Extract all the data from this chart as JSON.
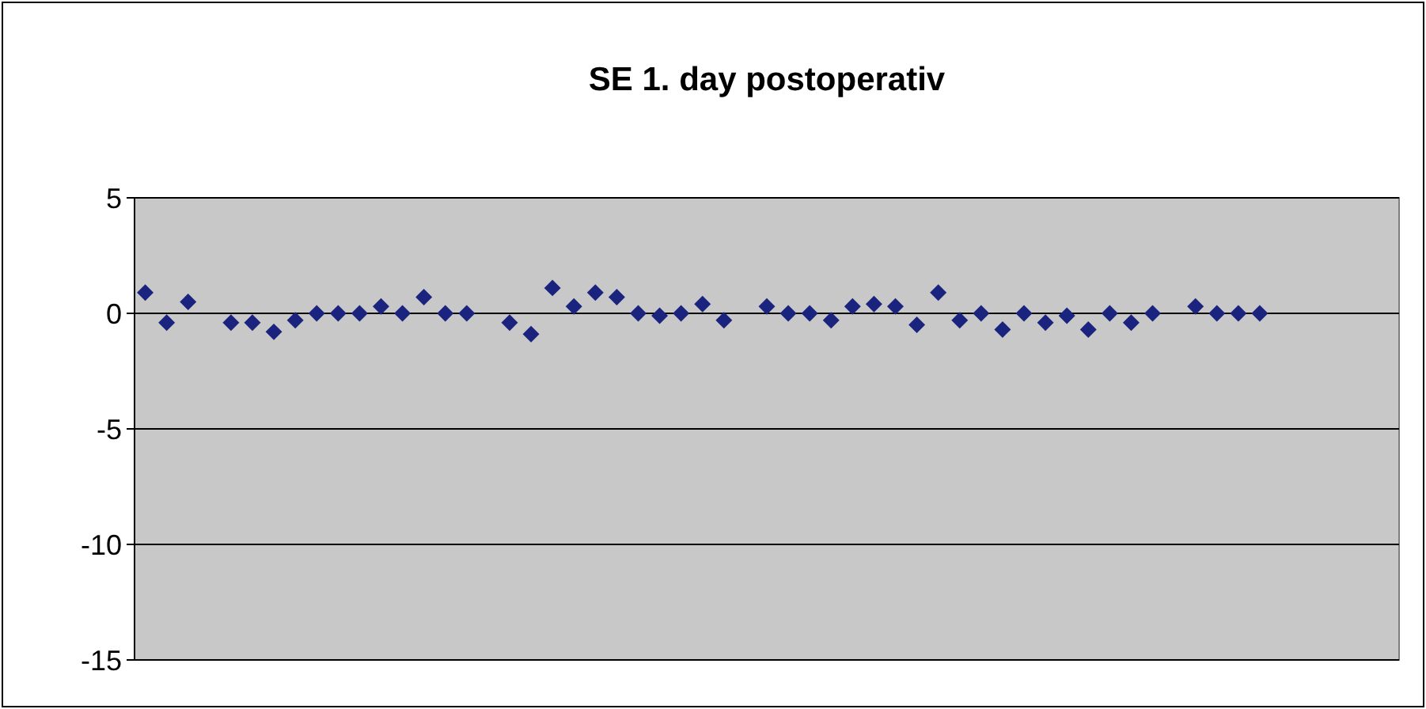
{
  "chart_data": {
    "type": "scatter",
    "title": "SE 1. day postoperativ",
    "categories": [
      null,
      null,
      null,
      null,
      null,
      null,
      null,
      null,
      null,
      null,
      null,
      null,
      null,
      null,
      null,
      null,
      null,
      null,
      null,
      null,
      null,
      null,
      null,
      null,
      null,
      null,
      null,
      null,
      null,
      null,
      null,
      null,
      null,
      null,
      null,
      null,
      null,
      null,
      null,
      null,
      null,
      null,
      null,
      null,
      null,
      null,
      null,
      null,
      null,
      null,
      null,
      null,
      null,
      null,
      null,
      null,
      null,
      null,
      null
    ],
    "values": [
      0.9,
      -0.4,
      0.5,
      null,
      -0.4,
      -0.4,
      -0.8,
      -0.3,
      0,
      0,
      0,
      0.3,
      0,
      0.7,
      0,
      0,
      null,
      -0.4,
      -0.9,
      1.1,
      0.3,
      0.9,
      0.7,
      0,
      -0.1,
      0,
      0.4,
      -0.3,
      null,
      0.3,
      0,
      0,
      -0.3,
      0.3,
      0.4,
      0.3,
      -0.5,
      0.9,
      -0.3,
      0,
      -0.7,
      0,
      -0.4,
      -0.1,
      -0.7,
      0,
      -0.4,
      0,
      null,
      0.3,
      0,
      0,
      0,
      null,
      null,
      null,
      null,
      null,
      null
    ],
    "color": "#1a237e",
    "marker": "diamond",
    "ylim": [
      -15,
      5
    ],
    "yticks": [
      5,
      0,
      -5,
      -10,
      -15
    ],
    "grid": "y",
    "tick_labels": "y"
  }
}
